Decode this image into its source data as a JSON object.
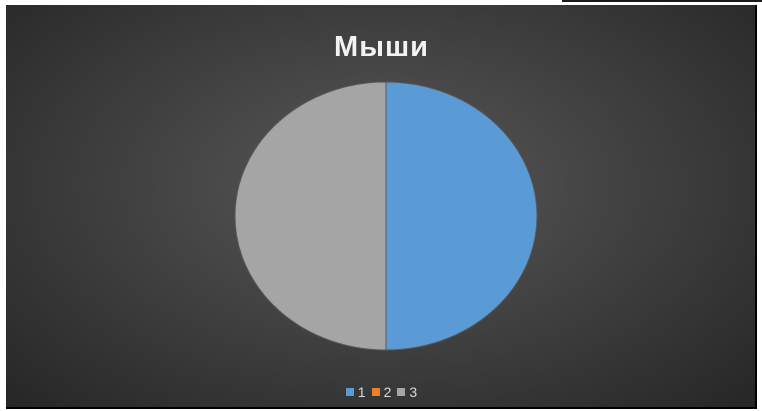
{
  "chart_data": {
    "type": "pie",
    "title": "Мыши",
    "categories": [
      "1",
      "2",
      "3"
    ],
    "values": [
      50,
      0,
      50
    ],
    "colors": [
      "#5b9bd5",
      "#ed7d31",
      "#a5a5a5"
    ],
    "legend_position": "bottom"
  }
}
